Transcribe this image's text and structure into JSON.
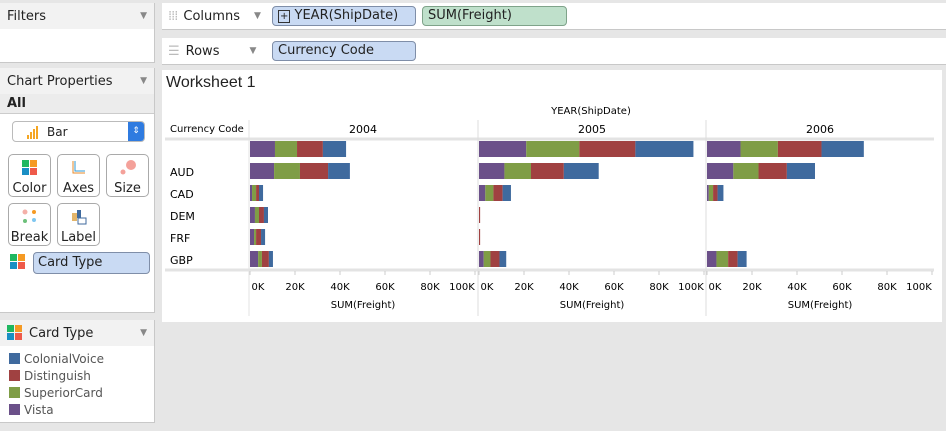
{
  "filters": {
    "title": "Filters"
  },
  "chart_properties": {
    "title": "Chart Properties",
    "tab": "All",
    "mark_type": "Bar",
    "buttons": [
      "Color",
      "Axes",
      "Size",
      "Break",
      "Label"
    ],
    "color_field": "Card Type"
  },
  "shelves": {
    "columns_label": "Columns",
    "columns_pills": [
      "YEAR(ShipDate)",
      "SUM(Freight)"
    ],
    "rows_label": "Rows",
    "rows_pills": [
      "Currency Code"
    ]
  },
  "worksheet": {
    "title": "Worksheet 1"
  },
  "legend": {
    "title": "Card Type",
    "items": [
      {
        "label": "ColonialVoice",
        "color": "#3f6a9e"
      },
      {
        "label": "Distinguish",
        "color": "#a04141"
      },
      {
        "label": "SuperiorCard",
        "color": "#7f9d46"
      },
      {
        "label": "Vista",
        "color": "#6b5089"
      }
    ]
  },
  "chart_data": {
    "type": "bar",
    "orientation": "horizontal-stacked",
    "column_header": "YEAR(ShipDate)",
    "row_header": "Currency Code",
    "xlabel": "SUM(Freight)",
    "xlim": [
      0,
      100000
    ],
    "ticks": [
      "0K",
      "20K",
      "40K",
      "60K",
      "80K",
      "100K"
    ],
    "panels": [
      "2004",
      "2005",
      "2006"
    ],
    "categories": [
      "",
      "AUD",
      "CAD",
      "DEM",
      "FRF",
      "GBP"
    ],
    "series_order": [
      "Vista",
      "SuperiorCard",
      "Distinguish",
      "ColonialVoice"
    ],
    "colors": {
      "Vista": "#6b5089",
      "SuperiorCard": "#7f9d46",
      "Distinguish": "#a04141",
      "ColonialVoice": "#3f6a9e"
    },
    "values_k": {
      "2004": [
        [
          11.1,
          9.8,
          11.5,
          10.3
        ],
        [
          10.7,
          11.5,
          12.5,
          9.7
        ],
        [
          0.9,
          1.8,
          1.3,
          1.8
        ],
        [
          2.2,
          1.8,
          2.2,
          1.8
        ],
        [
          1.8,
          0.9,
          2.2,
          1.8
        ],
        [
          3.6,
          1.7,
          3.1,
          1.8
        ]
      ],
      "2005": [
        [
          21,
          23.6,
          24.9,
          25.8
        ],
        [
          11.3,
          11.8,
          14.6,
          15.5
        ],
        [
          2.8,
          3.6,
          4.1,
          3.7
        ],
        [
          0,
          0,
          0.5,
          0
        ],
        [
          0,
          0,
          0.5,
          0
        ],
        [
          2.1,
          3.0,
          4.0,
          3.0
        ]
      ],
      "2006": [
        [
          14.9,
          16.6,
          19.4,
          18.8
        ],
        [
          11.7,
          11.2,
          12.6,
          12.5
        ],
        [
          0.8,
          1.9,
          2.0,
          2.6
        ],
        [
          0,
          0,
          0,
          0
        ],
        [
          0,
          0,
          0,
          0
        ],
        [
          4.2,
          5.2,
          4.2,
          4.0
        ]
      ]
    }
  }
}
